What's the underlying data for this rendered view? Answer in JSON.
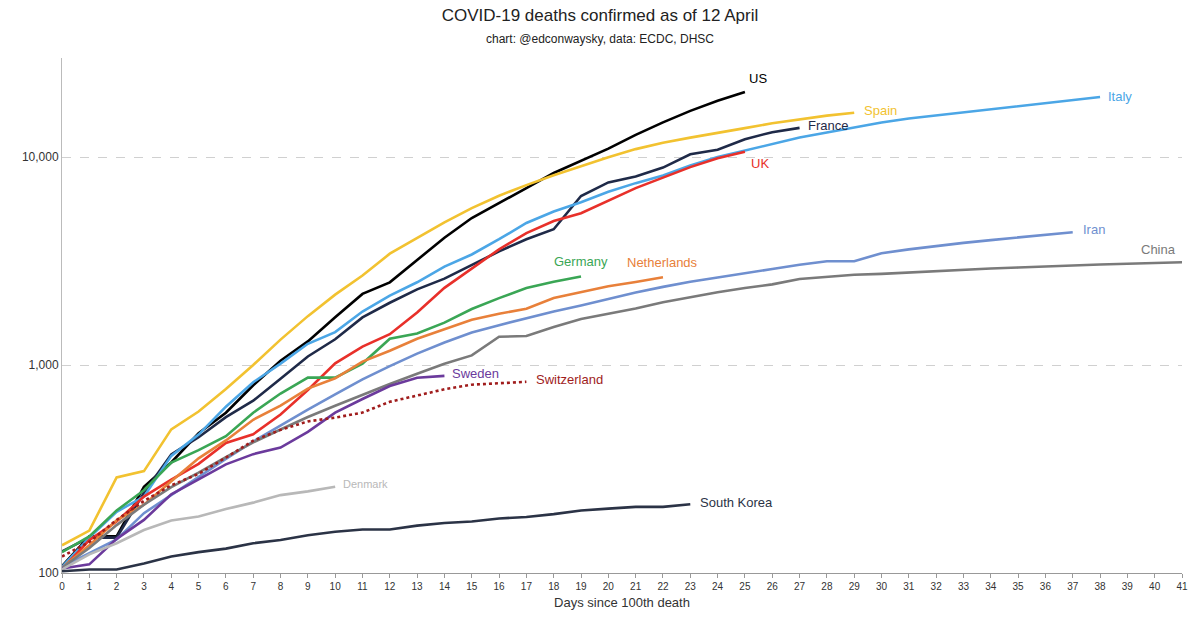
{
  "chart_data": {
    "type": "line",
    "title": "COVID-19 deaths confirmed as of 12 April",
    "subtitle": "chart: @edconwaysky, data: ECDC, DHSC",
    "x_label": "Days since 100th death",
    "log": "y",
    "grid": "y",
    "x": [
      0,
      1,
      2,
      3,
      4,
      5,
      6,
      7,
      8,
      9,
      10,
      11,
      12,
      13,
      14,
      15,
      16,
      17,
      18,
      19,
      20,
      21,
      22,
      23,
      24,
      25,
      26,
      27,
      28,
      29,
      30,
      31,
      32,
      33,
      34,
      35,
      36,
      37,
      38,
      39,
      40,
      41
    ],
    "xlim": [
      0,
      41
    ],
    "xticks": [
      0,
      1,
      2,
      3,
      4,
      5,
      6,
      7,
      8,
      9,
      10,
      11,
      12,
      13,
      14,
      15,
      16,
      17,
      18,
      19,
      20,
      21,
      22,
      23,
      24,
      25,
      26,
      27,
      28,
      29,
      30,
      31,
      32,
      33,
      34,
      35,
      36,
      37,
      38,
      39,
      40,
      41
    ],
    "ylim": [
      100,
      30000
    ],
    "yticks": [
      100,
      {
        "value": 1000,
        "label": "1,000"
      },
      {
        "value": 10000,
        "label": "10,000"
      }
    ],
    "series": [
      {
        "name": "US",
        "color": "#000000",
        "values": [
          108,
          150,
          150,
          260,
          340,
          470,
          590,
          800,
          1050,
          1300,
          1700,
          2200,
          2500,
          3200,
          4100,
          5100,
          6000,
          7100,
          8400,
          9600,
          11000,
          12800,
          14700,
          16700,
          18700,
          20600,
          null,
          null,
          null,
          null,
          null,
          null,
          null,
          null,
          null,
          null,
          null,
          null,
          null,
          null,
          null,
          null
        ]
      },
      {
        "name": "France",
        "color": "#1f2a48",
        "values": [
          127,
          148,
          148,
          243,
          372,
          450,
          562,
          674,
          860,
          1100,
          1331,
          1696,
          1995,
          2314,
          2606,
          3024,
          3523,
          4032,
          4503,
          6507,
          7560,
          8078,
          8911,
          10328,
          10869,
          12210,
          13197,
          13832,
          null,
          null,
          null,
          null,
          null,
          null,
          null,
          null,
          null,
          null,
          null,
          null,
          null,
          null
        ]
      },
      {
        "name": "Spain",
        "color": "#f2c230",
        "values": [
          136,
          160,
          288,
          309,
          491,
          598,
          767,
          1002,
          1326,
          1720,
          2182,
          2696,
          3434,
          4089,
          4858,
          5690,
          6528,
          7340,
          8189,
          9053,
          10003,
          10935,
          11744,
          12418,
          13055,
          13798,
          14555,
          15238,
          15843,
          16353,
          null,
          null,
          null,
          null,
          null,
          null,
          null,
          null,
          null,
          null,
          null,
          null
        ]
      },
      {
        "name": "Italy",
        "color": "#4ba6e6",
        "values": [
          107,
          148,
          197,
          233,
          366,
          463,
          631,
          827,
          1016,
          1266,
          1441,
          1809,
          2158,
          2503,
          2978,
          3405,
          4032,
          4825,
          5476,
          6077,
          6820,
          7503,
          8165,
          9134,
          10023,
          10779,
          11591,
          12428,
          13155,
          13915,
          14681,
          15362,
          15887,
          16523,
          17127,
          17669,
          18279,
          18849,
          19468,
          null,
          null,
          null
        ]
      },
      {
        "name": "UK",
        "color": "#e8302a",
        "values": [
          104,
          144,
          177,
          233,
          281,
          335,
          422,
          465,
          578,
          759,
          1019,
          1228,
          1408,
          1789,
          2352,
          2921,
          3605,
          4313,
          4934,
          5373,
          6159,
          7097,
          7978,
          8958,
          9875,
          10612,
          null,
          null,
          null,
          null,
          null,
          null,
          null,
          null,
          null,
          null,
          null,
          null,
          null,
          null,
          null,
          null
        ]
      },
      {
        "name": "Germany",
        "color": "#3aa655",
        "values": [
          126,
          150,
          200,
          250,
          340,
          390,
          455,
          590,
          730,
          870,
          870,
          1017,
          1340,
          1420,
          1600,
          1860,
          2100,
          2350,
          2520,
          2670,
          null,
          null,
          null,
          null,
          null,
          null,
          null,
          null,
          null,
          null,
          null,
          null,
          null,
          null,
          null,
          null,
          null,
          null,
          null,
          null,
          null,
          null
        ]
      },
      {
        "name": "Netherlands",
        "color": "#e8803a",
        "values": [
          106,
          136,
          179,
          213,
          276,
          356,
          434,
          546,
          639,
          771,
          864,
          1039,
          1173,
          1339,
          1487,
          1651,
          1766,
          1867,
          2101,
          2248,
          2396,
          2511,
          2643,
          null,
          null,
          null,
          null,
          null,
          null,
          null,
          null,
          null,
          null,
          null,
          null,
          null,
          null,
          null,
          null,
          null,
          null,
          null
        ]
      },
      {
        "name": "Iran",
        "color": "#6f8fcf",
        "values": [
          107,
          124,
          145,
          194,
          237,
          291,
          354,
          429,
          514,
          611,
          724,
          853,
          988,
          1135,
          1284,
          1433,
          1556,
          1685,
          1812,
          1934,
          2077,
          2234,
          2378,
          2517,
          2640,
          2757,
          2898,
          3036,
          3160,
          3160,
          3452,
          3603,
          3739,
          3872,
          3993,
          4110,
          4232,
          4357,
          null,
          null,
          null,
          null
        ]
      },
      {
        "name": "China",
        "color": "#7a7a7a",
        "values": [
          106,
          132,
          170,
          213,
          259,
          304,
          361,
          425,
          490,
          563,
          637,
          722,
          811,
          908,
          1016,
          1113,
          1368,
          1381,
          1524,
          1666,
          1772,
          1870,
          2006,
          2121,
          2239,
          2348,
          2445,
          2595,
          2666,
          2718,
          2747,
          2791,
          2838,
          2873,
          2915,
          2946,
          2984,
          3015,
          3045,
          3073,
          3100,
          3123
        ]
      },
      {
        "name": "Sweden",
        "color": "#6b3a9c",
        "values": [
          105,
          110,
          146,
          180,
          239,
          282,
          333,
          373,
          401,
          477,
          591,
          687,
          793,
          870,
          887,
          null,
          null,
          null,
          null,
          null,
          null,
          null,
          null,
          null,
          null,
          null,
          null,
          null,
          null,
          null,
          null,
          null,
          null,
          null,
          null,
          null,
          null,
          null,
          null,
          null,
          null,
          null
        ]
      },
      {
        "name": "Switzerland",
        "color": "#a01c1c",
        "line_style": "dotted",
        "values": [
          120,
          141,
          180,
          222,
          264,
          300,
          359,
          433,
          488,
          536,
          559,
          591,
          666,
          715,
          765,
          805,
          821,
          831,
          null,
          null,
          null,
          null,
          null,
          null,
          null,
          null,
          null,
          null,
          null,
          null,
          null,
          null,
          null,
          null,
          null,
          null,
          null,
          null,
          null,
          null,
          null,
          null
        ]
      },
      {
        "name": "Denmark",
        "color": "#b8b8b8",
        "values": [
          104,
          123,
          139,
          161,
          179,
          187,
          203,
          218,
          237,
          247,
          260,
          null,
          null,
          null,
          null,
          null,
          null,
          null,
          null,
          null,
          null,
          null,
          null,
          null,
          null,
          null,
          null,
          null,
          null,
          null,
          null,
          null,
          null,
          null,
          null,
          null,
          null,
          null,
          null,
          null,
          null,
          null
        ]
      },
      {
        "name": "South Korea",
        "color": "#2b3346",
        "values": [
          102,
          104,
          104,
          111,
          120,
          126,
          131,
          139,
          144,
          152,
          158,
          162,
          162,
          169,
          174,
          177,
          183,
          186,
          192,
          200,
          204,
          208,
          208,
          214,
          null,
          null,
          null,
          null,
          null,
          null,
          null,
          null,
          null,
          null,
          null,
          null,
          null,
          null,
          null,
          null,
          null,
          null
        ]
      }
    ]
  }
}
